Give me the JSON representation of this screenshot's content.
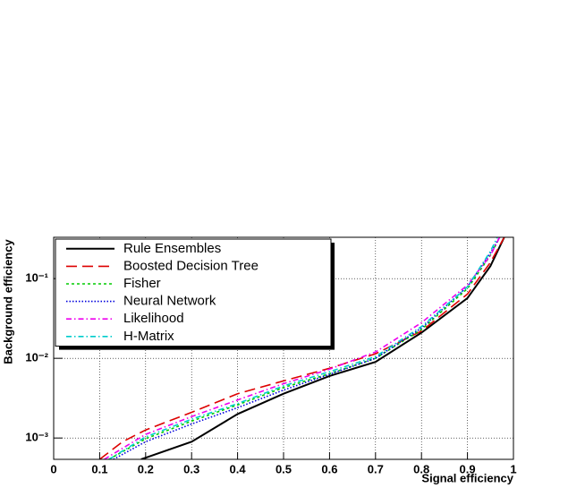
{
  "chart_data": {
    "type": "line",
    "xlabel": "Signal efficiency",
    "ylabel": "Background efficiency",
    "xlim": [
      0,
      1
    ],
    "ylim": [
      0.00054,
      0.33
    ],
    "log_y": true,
    "grid": true,
    "legend": "upper left",
    "xticks": [
      0,
      0.1,
      0.2,
      0.3,
      0.4,
      0.5,
      0.6,
      0.7,
      0.8,
      0.9,
      1
    ],
    "yticks": [
      {
        "value": 0.001,
        "label": "10⁻³"
      },
      {
        "value": 0.01,
        "label": "10⁻²"
      },
      {
        "value": 0.1,
        "label": "10⁻¹"
      }
    ],
    "series": [
      {
        "name": "Rule Ensembles",
        "color": "#000000",
        "dash": "solid",
        "x": [
          0.19,
          0.3,
          0.4,
          0.5,
          0.6,
          0.7,
          0.8,
          0.9,
          0.95,
          0.98
        ],
        "values": [
          0.00054,
          0.0009,
          0.002,
          0.0036,
          0.006,
          0.009,
          0.021,
          0.057,
          0.144,
          0.33
        ]
      },
      {
        "name": "Boosted Decision Tree",
        "color": "#dd0000",
        "dash": "dashed",
        "x": [
          0.1,
          0.15,
          0.2,
          0.3,
          0.4,
          0.5,
          0.6,
          0.7,
          0.8,
          0.9,
          0.95,
          0.98
        ],
        "values": [
          0.00054,
          0.0009,
          0.00126,
          0.0021,
          0.0036,
          0.0052,
          0.0075,
          0.0114,
          0.022,
          0.064,
          0.16,
          0.33
        ]
      },
      {
        "name": "Fisher",
        "color": "#00cc00",
        "dash": "dotted",
        "x": [
          0.12,
          0.2,
          0.3,
          0.4,
          0.5,
          0.6,
          0.7,
          0.8,
          0.9,
          0.95,
          0.97
        ],
        "values": [
          0.00054,
          0.00098,
          0.00163,
          0.0026,
          0.0043,
          0.0064,
          0.01,
          0.023,
          0.075,
          0.196,
          0.33
        ]
      },
      {
        "name": "Neural Network",
        "color": "#0000dd",
        "dash": "fine",
        "x": [
          0.13,
          0.2,
          0.3,
          0.4,
          0.5,
          0.6,
          0.7,
          0.8,
          0.9,
          0.95,
          0.97
        ],
        "values": [
          0.00054,
          0.0009,
          0.0015,
          0.0024,
          0.004,
          0.0063,
          0.01,
          0.024,
          0.079,
          0.21,
          0.33
        ]
      },
      {
        "name": "Likelihood",
        "color": "#ee00ee",
        "dash": "dashdot",
        "x": [
          0.11,
          0.2,
          0.3,
          0.4,
          0.5,
          0.6,
          0.7,
          0.8,
          0.9,
          0.95,
          0.97
        ],
        "values": [
          0.00054,
          0.00111,
          0.00186,
          0.003,
          0.0048,
          0.0073,
          0.012,
          0.028,
          0.083,
          0.196,
          0.33
        ]
      },
      {
        "name": "H-Matrix",
        "color": "#00cccc",
        "dash": "dashdot",
        "x": [
          0.12,
          0.2,
          0.3,
          0.4,
          0.5,
          0.6,
          0.7,
          0.8,
          0.9,
          0.95,
          0.965
        ],
        "values": [
          0.00054,
          0.00103,
          0.00172,
          0.0027,
          0.0045,
          0.0068,
          0.0105,
          0.025,
          0.079,
          0.22,
          0.33
        ]
      }
    ]
  }
}
